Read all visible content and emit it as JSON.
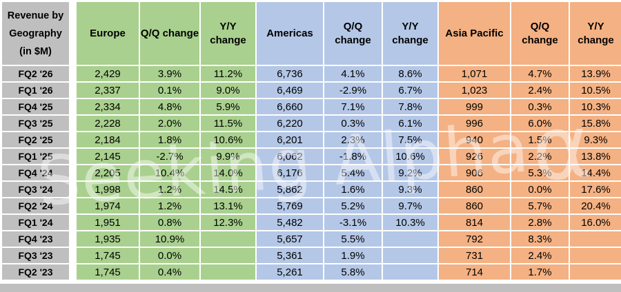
{
  "watermark": {
    "text": "Seeking Alpha",
    "alpha_symbol": "α"
  },
  "colors": {
    "label_gray": "#bfbfbf",
    "europe_green": "#a9d08e",
    "americas_blue": "#b4c7e7",
    "asia_pacific_orange": "#f4b183",
    "gridline_white": "#ffffff"
  },
  "chart_data": {
    "type": "table",
    "title": "Revenue by Geography (in $M)",
    "corner_label_lines": [
      "Revenue by",
      "Geography",
      "(in $M)"
    ],
    "column_groups": [
      {
        "name": "Europe",
        "color": "#a9d08e"
      },
      {
        "name": "Americas",
        "color": "#b4c7e7"
      },
      {
        "name": "Asia Pacific",
        "color": "#f4b183"
      }
    ],
    "columns": [
      "Europe",
      "Q/Q change",
      "Y/Y change",
      "Americas",
      "Q/Q change",
      "Y/Y change",
      "Asia Pacific",
      "Q/Q change",
      "Y/Y change"
    ],
    "row_labels": [
      "FQ2 '26",
      "FQ1 '26",
      "FQ4 '25",
      "FQ3 '25",
      "FQ2 '25",
      "FQ1 '25",
      "FQ4 '24",
      "FQ3 '24",
      "FQ2 '24",
      "FQ1 '24",
      "FQ4 '23",
      "FQ3 '23",
      "FQ2 '23"
    ],
    "rows": [
      [
        "2,429",
        "3.9%",
        "11.2%",
        "6,736",
        "4.1%",
        "8.6%",
        "1,071",
        "4.7%",
        "13.9%"
      ],
      [
        "2,337",
        "0.1%",
        "9.0%",
        "6,469",
        "-2.9%",
        "6.7%",
        "1,023",
        "2.4%",
        "10.5%"
      ],
      [
        "2,334",
        "4.8%",
        "5.9%",
        "6,660",
        "7.1%",
        "7.8%",
        "999",
        "0.3%",
        "10.3%"
      ],
      [
        "2,228",
        "2.0%",
        "11.5%",
        "6,220",
        "0.3%",
        "6.1%",
        "996",
        "6.0%",
        "15.8%"
      ],
      [
        "2,184",
        "1.8%",
        "10.6%",
        "6,201",
        "2.3%",
        "7.5%",
        "940",
        "1.5%",
        "9.3%"
      ],
      [
        "2,145",
        "-2.7%",
        "9.9%",
        "6,062",
        "-1.8%",
        "10.6%",
        "926",
        "2.2%",
        "13.8%"
      ],
      [
        "2,205",
        "10.4%",
        "14.0%",
        "6,176",
        "5.4%",
        "9.2%",
        "906",
        "5.3%",
        "14.4%"
      ],
      [
        "1,998",
        "1.2%",
        "14.5%",
        "5,862",
        "1.6%",
        "9.3%",
        "860",
        "0.0%",
        "17.6%"
      ],
      [
        "1,974",
        "1.2%",
        "13.1%",
        "5,769",
        "5.2%",
        "9.7%",
        "860",
        "5.7%",
        "20.4%"
      ],
      [
        "1,951",
        "0.8%",
        "12.3%",
        "5,482",
        "-3.1%",
        "10.3%",
        "814",
        "2.8%",
        "16.0%"
      ],
      [
        "1,935",
        "10.9%",
        "",
        "5,657",
        "5.5%",
        "",
        "792",
        "8.3%",
        ""
      ],
      [
        "1,745",
        "0.0%",
        "",
        "5,361",
        "1.9%",
        "",
        "731",
        "2.4%",
        ""
      ],
      [
        "1,745",
        "0.4%",
        "",
        "5,261",
        "5.8%",
        "",
        "714",
        "1.7%",
        ""
      ]
    ]
  }
}
